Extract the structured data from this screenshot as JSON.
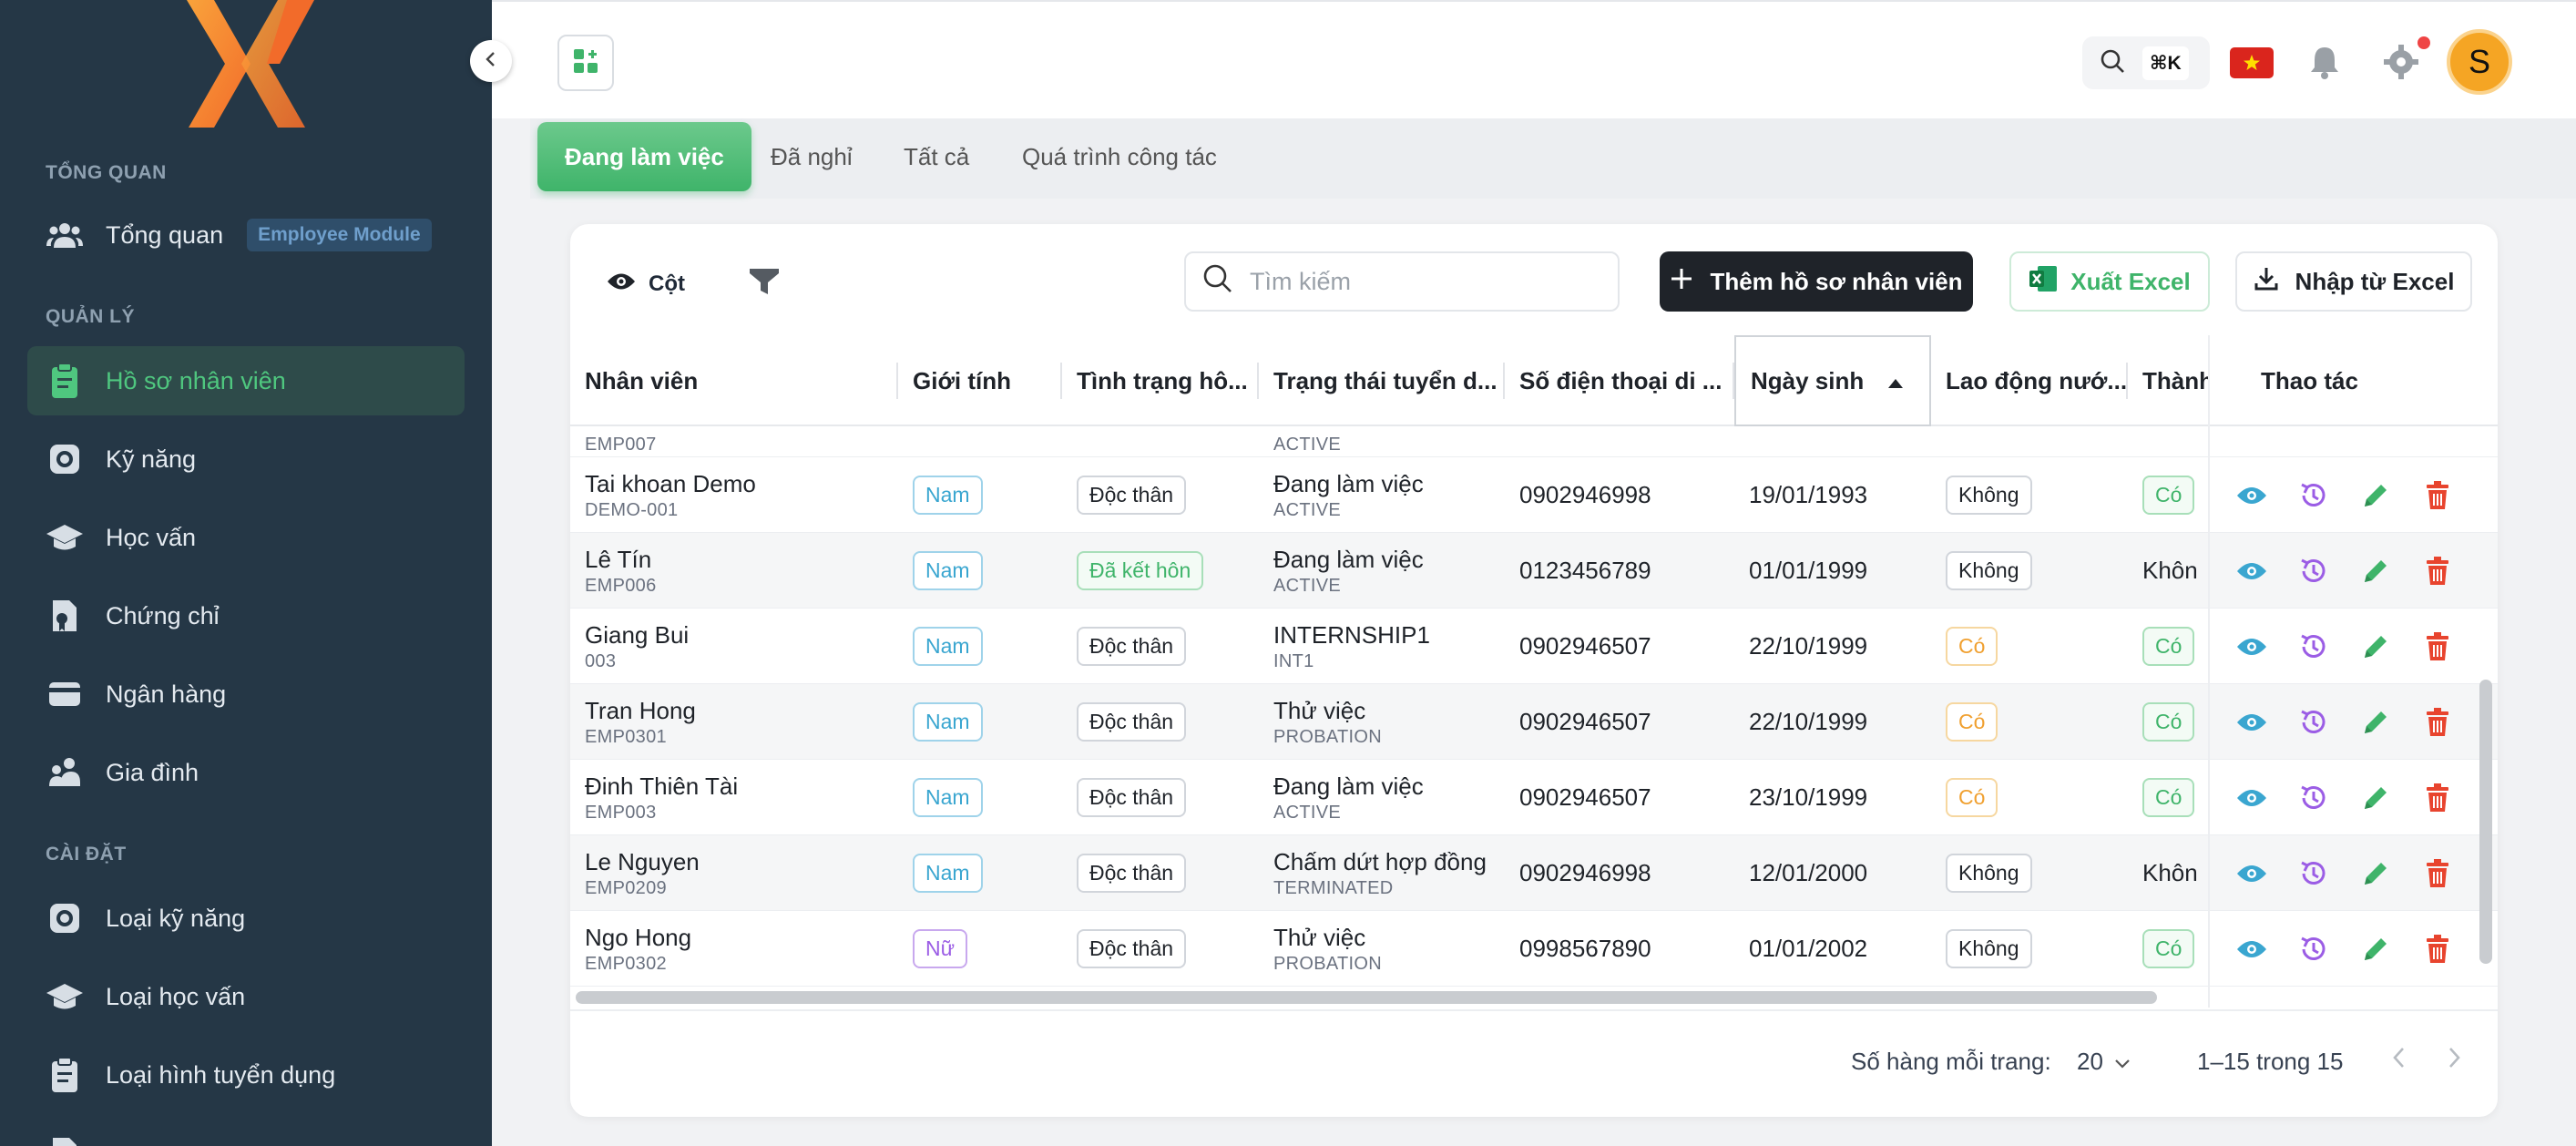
{
  "sidebar": {
    "sections": [
      {
        "title": "TỔNG QUAN"
      },
      {
        "title": "QUẢN LÝ"
      },
      {
        "title": "CÀI ĐẶT"
      }
    ],
    "items": [
      {
        "label": "Tổng quan",
        "badge": "Employee Module"
      },
      {
        "label": "Hồ sơ nhân viên"
      },
      {
        "label": "Kỹ năng"
      },
      {
        "label": "Học vấn"
      },
      {
        "label": "Chứng chỉ"
      },
      {
        "label": "Ngân hàng"
      },
      {
        "label": "Gia đình"
      },
      {
        "label": "Loại kỹ năng"
      },
      {
        "label": "Loại học vấn"
      },
      {
        "label": "Loại hình tuyển dụng"
      }
    ]
  },
  "topbar": {
    "shortcut": "⌘K",
    "avatar_initial": "S"
  },
  "tabs": [
    "Đang làm việc",
    "Đã nghỉ",
    "Tất cả",
    "Quá trình công tác"
  ],
  "toolbar": {
    "columns_label": "Cột",
    "search_placeholder": "Tìm kiếm",
    "add_label": "Thêm hồ sơ nhân viên",
    "export_label": "Xuất Excel",
    "import_label": "Nhập từ Excel"
  },
  "table": {
    "headers": [
      "Nhân viên",
      "Giới tính",
      "Tình trạng hô...",
      "Trạng thái tuyển d...",
      "Số điện thoại di ...",
      "Ngày sinh",
      "Lao động nướ...",
      "Thành",
      "Thao tác"
    ],
    "partial_row": {
      "code": "EMP007",
      "status_code": "ACTIVE"
    },
    "rows": [
      {
        "name": "Tai khoan Demo",
        "code": "DEMO-001",
        "gender": "Nam",
        "marital": "Độc thân",
        "status": "Đang làm việc",
        "status_code": "ACTIVE",
        "phone": "0902946998",
        "dob": "19/01/1993",
        "foreign": "Không",
        "member": "Có"
      },
      {
        "name": "Lê Tín",
        "code": "EMP006",
        "gender": "Nam",
        "marital": "Đã kết hôn",
        "status": "Đang làm việc",
        "status_code": "ACTIVE",
        "phone": "0123456789",
        "dob": "01/01/1999",
        "foreign": "Không",
        "member": "Khôn"
      },
      {
        "name": "Giang Bui",
        "code": "003",
        "gender": "Nam",
        "marital": "Độc thân",
        "status": "INTERNSHIP1",
        "status_code": "INT1",
        "phone": "0902946507",
        "dob": "22/10/1999",
        "foreign": "Có",
        "member": "Có"
      },
      {
        "name": "Tran Hong",
        "code": "EMP0301",
        "gender": "Nam",
        "marital": "Độc thân",
        "status": "Thử việc",
        "status_code": "PROBATION",
        "phone": "0902946507",
        "dob": "22/10/1999",
        "foreign": "Có",
        "member": "Có"
      },
      {
        "name": "Đinh Thiên Tài",
        "code": "EMP003",
        "gender": "Nam",
        "marital": "Độc thân",
        "status": "Đang làm việc",
        "status_code": "ACTIVE",
        "phone": "0902946507",
        "dob": "23/10/1999",
        "foreign": "Có",
        "member": "Có"
      },
      {
        "name": "Le Nguyen",
        "code": "EMP0209",
        "gender": "Nam",
        "marital": "Độc thân",
        "status": "Chấm dứt hợp đồng",
        "status_code": "TERMINATED",
        "phone": "0902946998",
        "dob": "12/01/2000",
        "foreign": "Không",
        "member": "Khôn"
      },
      {
        "name": "Ngo Hong",
        "code": "EMP0302",
        "gender": "Nữ",
        "marital": "Độc thân",
        "status": "Thử việc",
        "status_code": "PROBATION",
        "phone": "0998567890",
        "dob": "01/01/2002",
        "foreign": "Không",
        "member": "Có"
      }
    ]
  },
  "footer": {
    "rows_per_page_label": "Số hàng mỗi trang:",
    "rows_per_page": "20",
    "range": "1–15 trong 15"
  },
  "colors": {
    "sidebar_bg": "#253746",
    "accent_green": "#3fb46a",
    "brand_orange": "#f58220"
  }
}
